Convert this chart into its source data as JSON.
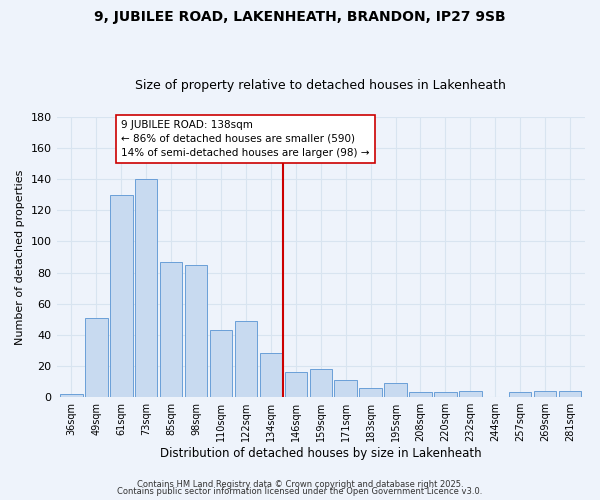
{
  "title": "9, JUBILEE ROAD, LAKENHEATH, BRANDON, IP27 9SB",
  "subtitle": "Size of property relative to detached houses in Lakenheath",
  "xlabel": "Distribution of detached houses by size in Lakenheath",
  "ylabel": "Number of detached properties",
  "categories": [
    "36sqm",
    "49sqm",
    "61sqm",
    "73sqm",
    "85sqm",
    "98sqm",
    "110sqm",
    "122sqm",
    "134sqm",
    "146sqm",
    "159sqm",
    "171sqm",
    "183sqm",
    "195sqm",
    "208sqm",
    "220sqm",
    "232sqm",
    "244sqm",
    "257sqm",
    "269sqm",
    "281sqm"
  ],
  "values": [
    2,
    51,
    130,
    140,
    87,
    85,
    43,
    49,
    28,
    16,
    18,
    11,
    6,
    9,
    3,
    3,
    4,
    0,
    3,
    4,
    4
  ],
  "bar_color": "#c8daf0",
  "bar_edge_color": "#6a9fd8",
  "vline_x_index": 8,
  "vline_color": "#cc0000",
  "annotation_text": "9 JUBILEE ROAD: 138sqm\n← 86% of detached houses are smaller (590)\n14% of semi-detached houses are larger (98) →",
  "annotation_box_color": "#ffffff",
  "annotation_box_edge": "#cc0000",
  "ylim": [
    0,
    180
  ],
  "yticks": [
    0,
    20,
    40,
    60,
    80,
    100,
    120,
    140,
    160,
    180
  ],
  "footer1": "Contains HM Land Registry data © Crown copyright and database right 2025.",
  "footer2": "Contains public sector information licensed under the Open Government Licence v3.0.",
  "bg_color": "#eef3fb",
  "grid_color": "#d8e4f0",
  "title_fontsize": 10,
  "subtitle_fontsize": 9
}
